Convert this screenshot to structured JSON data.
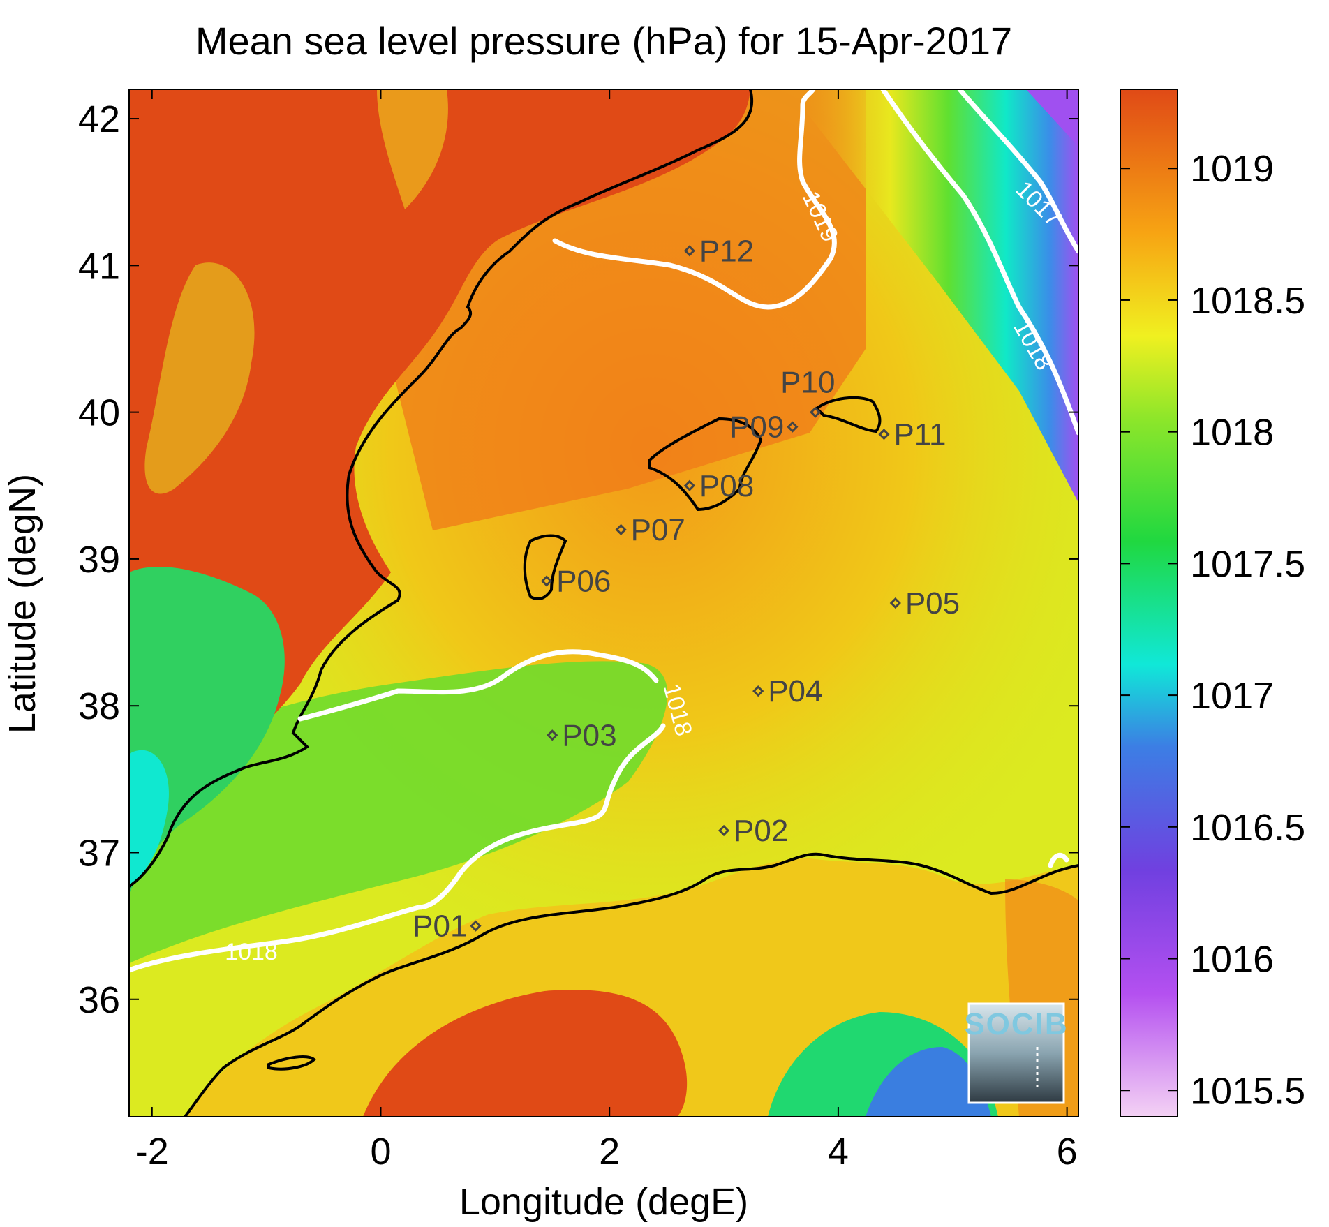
{
  "title": "Mean sea level pressure (hPa) for 15-Apr-2017",
  "xlabel": "Longitude (degE)",
  "ylabel": "Latitude (degN)",
  "x_ticks": [
    "-2",
    "0",
    "2",
    "4",
    "6"
  ],
  "y_ticks": [
    "36",
    "37",
    "38",
    "39",
    "40",
    "41",
    "42"
  ],
  "colorbar_ticks": [
    "1015.5",
    "1016",
    "1016.5",
    "1017",
    "1017.5",
    "1018",
    "1018.5",
    "1019"
  ],
  "contour_labels": [
    "1018",
    "1018",
    "1019",
    "1018",
    "1017"
  ],
  "stations": [
    {
      "label": "P01",
      "lon": 0.83,
      "lat": 36.5
    },
    {
      "label": "P02",
      "lon": 3.0,
      "lat": 37.15
    },
    {
      "label": "P03",
      "lon": 1.5,
      "lat": 37.8
    },
    {
      "label": "P04",
      "lon": 3.3,
      "lat": 38.1
    },
    {
      "label": "P05",
      "lon": 4.5,
      "lat": 38.7
    },
    {
      "label": "P06",
      "lon": 1.45,
      "lat": 38.85
    },
    {
      "label": "P07",
      "lon": 2.1,
      "lat": 39.2
    },
    {
      "label": "P08",
      "lon": 2.7,
      "lat": 39.5
    },
    {
      "label": "P09",
      "lon": 3.6,
      "lat": 39.9
    },
    {
      "label": "P10",
      "lon": 3.8,
      "lat": 40.0
    },
    {
      "label": "P11",
      "lon": 4.4,
      "lat": 39.85
    },
    {
      "label": "P12",
      "lon": 2.7,
      "lat": 41.1
    }
  ],
  "colors": {
    "high": "#e04a16",
    "mid_high": "#f7a413",
    "mid": "#e8e81e",
    "mid_low": "#8ee62a",
    "green": "#22cc44",
    "cyan": "#10e8d8",
    "blue": "#3a7ee0",
    "purple": "#9040e8",
    "low": "#f0c8f0",
    "contour": "#ffffff",
    "coast": "#000000"
  },
  "logo": "SOCIB"
}
